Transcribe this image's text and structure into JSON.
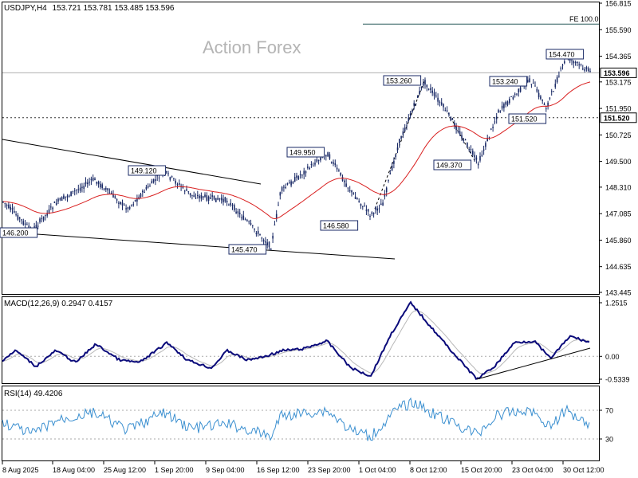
{
  "window": {
    "symbol": "USDJPY,H4",
    "ohlc": "153.721 153.781 153.485 153.596",
    "watermark": "Action Forex"
  },
  "colors": {
    "candle": "#1a2a66",
    "ma": "#d92020",
    "macd": "#0a0a7a",
    "signal": "#b8b8b8",
    "rsi": "#3a8fd0",
    "grid": "#9a9a9a",
    "fe_line": "#2a5a5a"
  },
  "price_panel": {
    "ticks": [
      "156.815",
      "155.590",
      "154.365",
      "153.175",
      "151.950",
      "150.725",
      "149.500",
      "148.310",
      "147.085",
      "145.860",
      "144.635",
      "143.445"
    ],
    "tick_values": [
      156.815,
      155.59,
      154.365,
      153.175,
      151.95,
      150.725,
      149.5,
      148.31,
      147.085,
      145.86,
      144.635,
      143.445
    ],
    "current_price": "153.596",
    "level_price": "151.520",
    "fe_label": "FE 100.0",
    "fe_value": 155.85,
    "annotations": [
      {
        "text": "146.200",
        "value": 146.2
      },
      {
        "text": "149.120",
        "value": 149.12
      },
      {
        "text": "145.470",
        "value": 145.47
      },
      {
        "text": "149.950",
        "value": 149.95
      },
      {
        "text": "146.580",
        "value": 146.58
      },
      {
        "text": "153.260",
        "value": 153.26
      },
      {
        "text": "149.370",
        "value": 149.37
      },
      {
        "text": "153.240",
        "value": 153.24
      },
      {
        "text": "151.520",
        "value": 151.52
      },
      {
        "text": "154.470",
        "value": 154.47
      }
    ]
  },
  "macd_panel": {
    "title": "MACD(12,26,9) 0.2947 0.4157",
    "ticks": [
      "1.2515",
      "0.00",
      "-0.5339"
    ],
    "tick_values": [
      1.2515,
      0.0,
      -0.5339
    ]
  },
  "rsi_panel": {
    "title": "RSI(14) 49.4206",
    "ticks": [
      "70",
      "30"
    ],
    "tick_values": [
      70,
      30
    ]
  },
  "x_axis": {
    "labels": [
      "8 Aug 2025",
      "18 Aug 04:00",
      "25 Aug 12:00",
      "1 Sep 20:00",
      "9 Sep 04:00",
      "16 Sep 12:00",
      "23 Sep 20:00",
      "1 Oct 04:00",
      "8 Oct 12:00",
      "15 Oct 20:00",
      "23 Oct 04:00",
      "30 Oct 12:00"
    ]
  },
  "chart_data": {
    "type": "candlestick",
    "symbol": "USDJPY",
    "timeframe": "H4",
    "swing_points": [
      {
        "label": "146.200",
        "date": "8 Aug 2025",
        "value": 146.2
      },
      {
        "label": "149.120",
        "date": "1 Sep 20:00",
        "value": 149.12
      },
      {
        "label": "145.470",
        "date": "16 Sep 12:00",
        "value": 145.47
      },
      {
        "label": "149.950",
        "date": "23 Sep 20:00",
        "value": 149.95
      },
      {
        "label": "146.580",
        "date": "1 Oct 04:00",
        "value": 146.58
      },
      {
        "label": "153.260",
        "date": "8 Oct 12:00",
        "value": 153.26
      },
      {
        "label": "149.370",
        "date": "15 Oct 20:00",
        "value": 149.37
      },
      {
        "label": "153.240",
        "date": "23 Oct 04:00",
        "value": 153.24
      },
      {
        "label": "151.520",
        "date": "23 Oct 04:00",
        "value": 151.52
      },
      {
        "label": "154.470",
        "date": "30 Oct 12:00",
        "value": 154.47
      }
    ],
    "close_path": [
      {
        "date": "8 Aug 2025",
        "value": 147.6
      },
      {
        "date": "18 Aug 04:00",
        "value": 147.8
      },
      {
        "date": "25 Aug 12:00",
        "value": 147.3
      },
      {
        "date": "1 Sep 20:00",
        "value": 147.9
      },
      {
        "date": "9 Sep 04:00",
        "value": 147.6
      },
      {
        "date": "16 Sep 12:00",
        "value": 146.8
      },
      {
        "date": "23 Sep 20:00",
        "value": 148.3
      },
      {
        "date": "1 Oct 04:00",
        "value": 147.3
      },
      {
        "date": "8 Oct 12:00",
        "value": 152.9
      },
      {
        "date": "15 Oct 20:00",
        "value": 150.6
      },
      {
        "date": "23 Oct 04:00",
        "value": 152.3
      },
      {
        "date": "30 Oct 12:00",
        "value": 154.2
      }
    ],
    "y_range": [
      143.445,
      156.815
    ],
    "macd_y_range": [
      -0.5339,
      1.2515
    ],
    "rsi_levels": [
      30,
      70
    ],
    "grid": true
  }
}
